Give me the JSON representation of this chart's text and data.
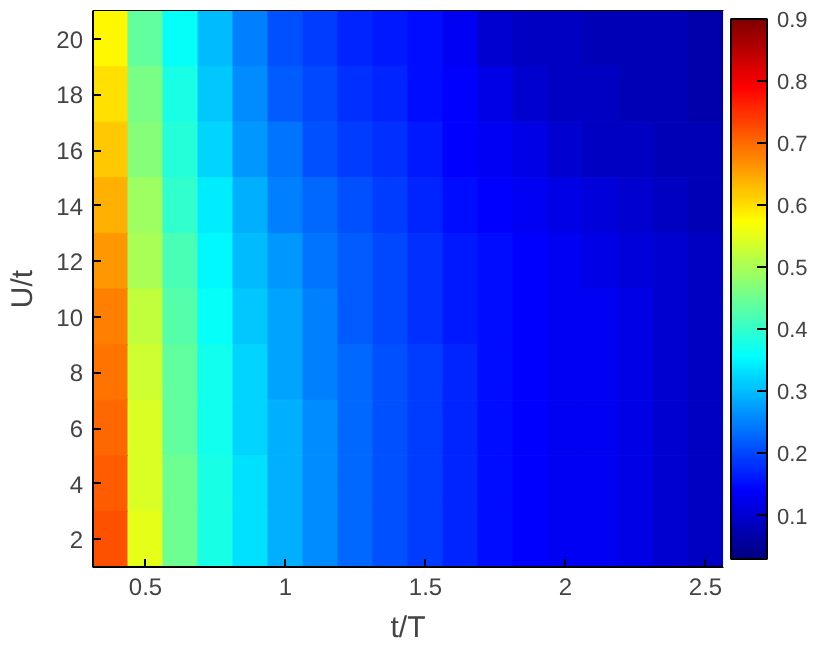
{
  "chart_data": {
    "type": "heatmap",
    "xlabel": "t/T",
    "ylabel": "U/t",
    "categories": [
      null,
      "0.5",
      null,
      null,
      null,
      "1",
      null,
      null,
      null,
      "1.5",
      null,
      null,
      null,
      "2",
      null,
      null,
      null,
      "2.5"
    ],
    "y_categories": [
      "20",
      "18",
      "16",
      "14",
      "12",
      "10",
      "8",
      "6",
      "4",
      "2"
    ],
    "clim": [
      0.03,
      0.9
    ],
    "cticks": [
      0.1,
      0.2,
      0.3,
      0.4,
      0.5,
      0.6,
      0.7,
      0.8,
      0.9
    ],
    "cells": [
      [
        0.58,
        0.44,
        0.36,
        0.3,
        0.25,
        0.21,
        0.19,
        0.17,
        0.16,
        0.15,
        0.13,
        0.1,
        0.09,
        0.09,
        0.08,
        0.08,
        0.08,
        0.07
      ],
      [
        0.6,
        0.46,
        0.38,
        0.31,
        0.26,
        0.22,
        0.2,
        0.18,
        0.17,
        0.15,
        0.14,
        0.12,
        0.1,
        0.09,
        0.09,
        0.08,
        0.08,
        0.07
      ],
      [
        0.62,
        0.47,
        0.39,
        0.32,
        0.27,
        0.24,
        0.21,
        0.19,
        0.18,
        0.16,
        0.14,
        0.13,
        0.12,
        0.1,
        0.09,
        0.09,
        0.08,
        0.08
      ],
      [
        0.64,
        0.49,
        0.4,
        0.34,
        0.29,
        0.25,
        0.23,
        0.21,
        0.19,
        0.17,
        0.15,
        0.14,
        0.13,
        0.12,
        0.11,
        0.1,
        0.09,
        0.08
      ],
      [
        0.66,
        0.5,
        0.42,
        0.35,
        0.3,
        0.27,
        0.24,
        0.22,
        0.2,
        0.18,
        0.16,
        0.15,
        0.14,
        0.13,
        0.12,
        0.11,
        0.1,
        0.09
      ],
      [
        0.68,
        0.52,
        0.43,
        0.36,
        0.31,
        0.28,
        0.25,
        0.22,
        0.2,
        0.18,
        0.16,
        0.15,
        0.14,
        0.13,
        0.13,
        0.12,
        0.1,
        0.09
      ],
      [
        0.69,
        0.53,
        0.44,
        0.37,
        0.32,
        0.28,
        0.25,
        0.23,
        0.21,
        0.19,
        0.17,
        0.15,
        0.14,
        0.13,
        0.13,
        0.12,
        0.1,
        0.09
      ],
      [
        0.7,
        0.54,
        0.44,
        0.37,
        0.32,
        0.29,
        0.26,
        0.23,
        0.21,
        0.19,
        0.17,
        0.15,
        0.14,
        0.13,
        0.13,
        0.12,
        0.1,
        0.09
      ],
      [
        0.71,
        0.54,
        0.45,
        0.38,
        0.33,
        0.29,
        0.26,
        0.23,
        0.21,
        0.19,
        0.17,
        0.15,
        0.14,
        0.13,
        0.13,
        0.12,
        0.1,
        0.09
      ],
      [
        0.72,
        0.55,
        0.45,
        0.38,
        0.33,
        0.29,
        0.26,
        0.23,
        0.21,
        0.19,
        0.17,
        0.15,
        0.14,
        0.13,
        0.13,
        0.12,
        0.1,
        0.09
      ]
    ]
  }
}
